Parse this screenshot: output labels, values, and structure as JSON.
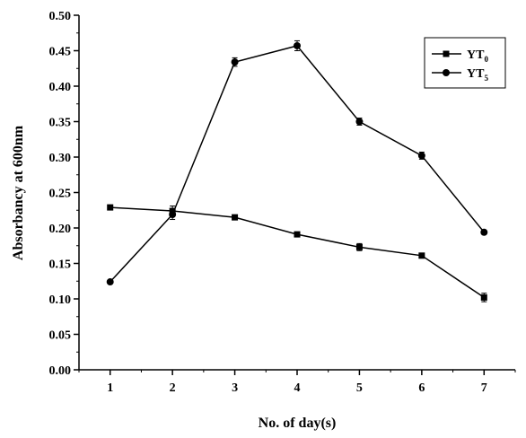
{
  "chart_data": {
    "type": "line",
    "x": [
      1,
      2,
      3,
      4,
      5,
      6,
      7
    ],
    "series": [
      {
        "name": "YT",
        "name_sub": "0",
        "marker": "square",
        "values": [
          0.229,
          0.224,
          0.215,
          0.191,
          0.173,
          0.161,
          0.102
        ],
        "errors": [
          0.002,
          0.007,
          0.003,
          0.003,
          0.005,
          0.003,
          0.006
        ]
      },
      {
        "name": "YT",
        "name_sub": "5",
        "marker": "circle",
        "values": [
          0.124,
          0.219,
          0.434,
          0.457,
          0.35,
          0.302,
          0.194
        ],
        "errors": [
          0.002,
          0.007,
          0.006,
          0.007,
          0.005,
          0.005,
          0.002
        ]
      }
    ],
    "xlabel": "No. of day(s)",
    "ylabel": "Absorbancy at 600nm",
    "xlim": [
      0.5,
      7.5
    ],
    "ylim": [
      0,
      0.5
    ],
    "xticks": [
      "1",
      "2",
      "3",
      "4",
      "5",
      "6",
      "7"
    ],
    "yticks": [
      "0.00",
      "0.05",
      "0.10",
      "0.15",
      "0.20",
      "0.25",
      "0.30",
      "0.35",
      "0.40",
      "0.45",
      "0.50"
    ],
    "grid": false,
    "legend_position": "top-right",
    "colors": {
      "line": "#000000",
      "background": "#ffffff"
    }
  }
}
